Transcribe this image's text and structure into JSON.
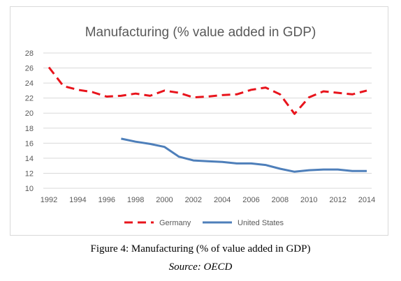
{
  "chart_data": {
    "type": "line",
    "title": "Manufacturing (% value added in GDP)",
    "xlabel": "",
    "ylabel": "",
    "x": [
      1992,
      1993,
      1994,
      1995,
      1996,
      1997,
      1998,
      1999,
      2000,
      2001,
      2002,
      2003,
      2004,
      2005,
      2006,
      2007,
      2008,
      2009,
      2010,
      2011,
      2012,
      2013,
      2014
    ],
    "xticks": [
      1992,
      1994,
      1996,
      1998,
      2000,
      2002,
      2004,
      2006,
      2008,
      2010,
      2012,
      2014
    ],
    "yticks": [
      10,
      12,
      14,
      16,
      18,
      20,
      22,
      24,
      26,
      28
    ],
    "ylim": [
      10,
      28
    ],
    "grid": true,
    "legend_position": "bottom",
    "series": [
      {
        "name": "Germany",
        "color": "#e8141c",
        "style": "dashed",
        "values": [
          26.1,
          23.6,
          23.1,
          22.8,
          22.2,
          22.3,
          22.6,
          22.3,
          23.0,
          22.7,
          22.1,
          22.2,
          22.4,
          22.5,
          23.1,
          23.4,
          22.5,
          19.9,
          22.1,
          22.9,
          22.7,
          22.5,
          23.0
        ]
      },
      {
        "name": "United States",
        "color": "#4e7fba",
        "style": "solid",
        "values": [
          null,
          null,
          null,
          null,
          null,
          16.6,
          16.2,
          15.9,
          15.5,
          14.2,
          13.7,
          13.6,
          13.5,
          13.3,
          13.3,
          13.1,
          12.6,
          12.2,
          12.4,
          12.5,
          12.5,
          12.3,
          12.3
        ]
      }
    ]
  },
  "captions": {
    "figure": "Figure 4: Manufacturing (% of value added in GDP)",
    "source": "Source: OECD"
  }
}
